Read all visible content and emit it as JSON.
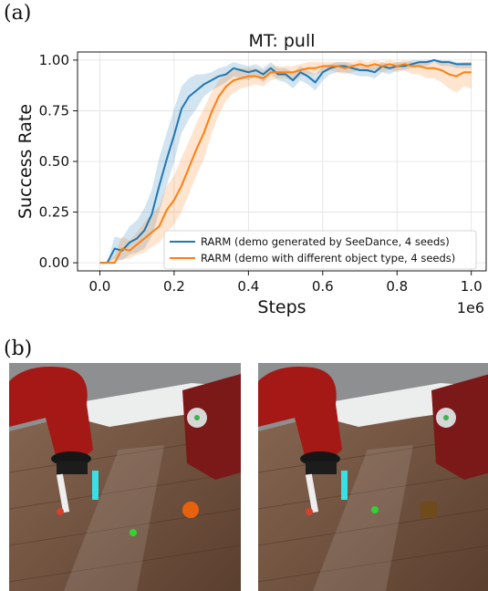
{
  "panel_a_label": "(a)",
  "panel_b_label": "(b)",
  "chart_data": {
    "type": "line",
    "title": "MT: pull",
    "xlabel": "Steps",
    "ylabel": "Success Rate",
    "x_offset_label": "1e6",
    "xlim": [
      -0.06,
      1.04
    ],
    "ylim": [
      -0.04,
      1.04
    ],
    "xticks": [
      0.0,
      0.2,
      0.4,
      0.6,
      0.8,
      1.0
    ],
    "xtick_labels": [
      "0.0",
      "0.2",
      "0.4",
      "0.6",
      "0.8",
      "1.0"
    ],
    "yticks": [
      0.0,
      0.25,
      0.5,
      0.75,
      1.0
    ],
    "ytick_labels": [
      "0.00",
      "0.25",
      "0.50",
      "0.75",
      "1.00"
    ],
    "grid": true,
    "legend_position": "lower-right",
    "series": [
      {
        "name": "RARM (demo generated by SeeDance, 4 seeds)",
        "color": "#1f77b4",
        "x": [
          0.0,
          0.02,
          0.04,
          0.06,
          0.08,
          0.1,
          0.12,
          0.14,
          0.16,
          0.18,
          0.2,
          0.22,
          0.24,
          0.26,
          0.28,
          0.3,
          0.32,
          0.34,
          0.36,
          0.38,
          0.4,
          0.42,
          0.44,
          0.46,
          0.48,
          0.5,
          0.52,
          0.54,
          0.56,
          0.58,
          0.6,
          0.62,
          0.64,
          0.66,
          0.68,
          0.7,
          0.72,
          0.74,
          0.76,
          0.78,
          0.8,
          0.82,
          0.84,
          0.86,
          0.88,
          0.9,
          0.92,
          0.94,
          0.96,
          0.98,
          1.0
        ],
        "values": [
          0.0,
          0.0,
          0.07,
          0.06,
          0.1,
          0.12,
          0.16,
          0.24,
          0.38,
          0.51,
          0.63,
          0.76,
          0.82,
          0.85,
          0.88,
          0.9,
          0.92,
          0.93,
          0.96,
          0.95,
          0.94,
          0.95,
          0.93,
          0.96,
          0.93,
          0.93,
          0.9,
          0.94,
          0.92,
          0.89,
          0.94,
          0.96,
          0.97,
          0.97,
          0.96,
          0.95,
          0.95,
          0.94,
          0.97,
          0.96,
          0.97,
          0.97,
          0.98,
          0.99,
          0.99,
          1.0,
          0.99,
          0.99,
          0.98,
          0.98,
          0.98
        ],
        "lower": [
          0.0,
          0.0,
          0.02,
          0.01,
          0.04,
          0.05,
          0.07,
          0.13,
          0.25,
          0.38,
          0.5,
          0.64,
          0.71,
          0.76,
          0.82,
          0.85,
          0.87,
          0.89,
          0.92,
          0.91,
          0.9,
          0.92,
          0.89,
          0.93,
          0.9,
          0.89,
          0.86,
          0.9,
          0.88,
          0.85,
          0.9,
          0.93,
          0.94,
          0.94,
          0.93,
          0.92,
          0.92,
          0.91,
          0.94,
          0.93,
          0.95,
          0.95,
          0.96,
          0.97,
          0.97,
          0.99,
          0.97,
          0.97,
          0.96,
          0.96,
          0.96
        ],
        "upper": [
          0.0,
          0.0,
          0.13,
          0.12,
          0.18,
          0.21,
          0.27,
          0.36,
          0.52,
          0.64,
          0.76,
          0.87,
          0.91,
          0.93,
          0.93,
          0.94,
          0.96,
          0.97,
          0.99,
          0.98,
          0.97,
          0.98,
          0.96,
          0.99,
          0.96,
          0.96,
          0.94,
          0.97,
          0.95,
          0.93,
          0.97,
          0.98,
          0.99,
          0.99,
          0.98,
          0.97,
          0.97,
          0.97,
          0.99,
          0.98,
          0.99,
          0.99,
          1.0,
          1.0,
          1.0,
          1.0,
          1.0,
          1.0,
          0.99,
          0.99,
          0.99
        ]
      },
      {
        "name": "RARM (demo with different object type, 4 seeds)",
        "color": "#ff7f0e",
        "x": [
          0.0,
          0.02,
          0.04,
          0.06,
          0.08,
          0.1,
          0.12,
          0.14,
          0.16,
          0.18,
          0.2,
          0.22,
          0.24,
          0.26,
          0.28,
          0.3,
          0.32,
          0.34,
          0.36,
          0.38,
          0.4,
          0.42,
          0.44,
          0.46,
          0.48,
          0.5,
          0.52,
          0.54,
          0.56,
          0.58,
          0.6,
          0.62,
          0.64,
          0.66,
          0.68,
          0.7,
          0.72,
          0.74,
          0.76,
          0.78,
          0.8,
          0.82,
          0.84,
          0.86,
          0.88,
          0.9,
          0.92,
          0.94,
          0.96,
          0.98,
          1.0
        ],
        "values": [
          0.0,
          0.0,
          0.0,
          0.07,
          0.06,
          0.09,
          0.12,
          0.15,
          0.18,
          0.26,
          0.31,
          0.38,
          0.47,
          0.56,
          0.64,
          0.74,
          0.82,
          0.87,
          0.9,
          0.91,
          0.92,
          0.92,
          0.91,
          0.94,
          0.94,
          0.94,
          0.94,
          0.95,
          0.96,
          0.96,
          0.97,
          0.97,
          0.97,
          0.96,
          0.97,
          0.98,
          0.97,
          0.98,
          0.97,
          0.98,
          0.97,
          0.98,
          0.97,
          0.97,
          0.96,
          0.96,
          0.95,
          0.93,
          0.92,
          0.94,
          0.94
        ],
        "lower": [
          0.0,
          0.0,
          0.0,
          0.02,
          0.02,
          0.04,
          0.05,
          0.08,
          0.1,
          0.15,
          0.19,
          0.25,
          0.34,
          0.43,
          0.51,
          0.63,
          0.73,
          0.8,
          0.84,
          0.86,
          0.87,
          0.88,
          0.87,
          0.9,
          0.91,
          0.91,
          0.9,
          0.92,
          0.93,
          0.93,
          0.94,
          0.95,
          0.94,
          0.93,
          0.94,
          0.95,
          0.94,
          0.95,
          0.94,
          0.95,
          0.94,
          0.95,
          0.93,
          0.93,
          0.91,
          0.91,
          0.89,
          0.86,
          0.84,
          0.87,
          0.86
        ],
        "upper": [
          0.0,
          0.0,
          0.04,
          0.13,
          0.11,
          0.15,
          0.2,
          0.24,
          0.28,
          0.38,
          0.43,
          0.52,
          0.6,
          0.69,
          0.76,
          0.84,
          0.9,
          0.93,
          0.95,
          0.96,
          0.96,
          0.96,
          0.95,
          0.97,
          0.97,
          0.97,
          0.97,
          0.98,
          0.99,
          0.99,
          0.99,
          0.99,
          0.99,
          0.99,
          0.99,
          1.0,
          0.99,
          1.0,
          0.99,
          1.0,
          0.99,
          1.0,
          0.99,
          0.99,
          0.99,
          0.99,
          0.99,
          0.98,
          0.98,
          0.99,
          0.99
        ]
      }
    ]
  },
  "images": [
    {
      "subject": "robot-arm-scene-with-orange-object",
      "object_color": "#e8620e"
    },
    {
      "subject": "robot-arm-scene-with-brown-object",
      "object_color": "#6e4a1c"
    }
  ]
}
